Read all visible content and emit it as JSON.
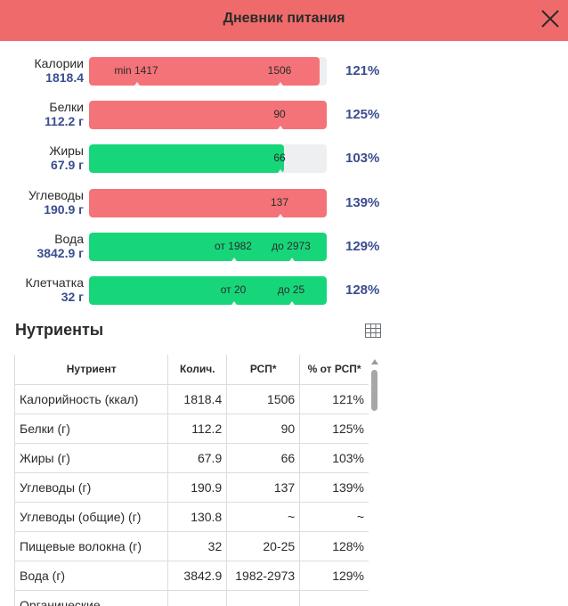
{
  "header": {
    "title": "Дневник питания"
  },
  "colors": {
    "header": "#ef6b6b",
    "over": "#f47378",
    "ok": "#17d67a",
    "track": "#eeeff1",
    "accent": "#3a4d8f"
  },
  "icons": {
    "close": "close-icon",
    "table_view": "table-icon"
  },
  "bars": [
    {
      "name": "Калории",
      "amount": "1818.4",
      "percent": "121%",
      "status": "over",
      "fill_fraction": 0.97,
      "markers": [
        {
          "label": "min 1417",
          "at_fraction": 0.2
        },
        {
          "label": "1506",
          "at_fraction": 0.8
        }
      ]
    },
    {
      "name": "Белки",
      "amount": "112.2 г",
      "percent": "125%",
      "status": "over",
      "fill_fraction": 1.0,
      "markers": [
        {
          "label": "90",
          "at_fraction": 0.8
        }
      ]
    },
    {
      "name": "Жиры",
      "amount": "67.9 г",
      "percent": "103%",
      "status": "ok",
      "fill_fraction": 0.82,
      "markers": [
        {
          "label": "66",
          "at_fraction": 0.8
        }
      ]
    },
    {
      "name": "Углеводы",
      "amount": "190.9 г",
      "percent": "139%",
      "status": "over",
      "fill_fraction": 1.0,
      "markers": [
        {
          "label": "137",
          "at_fraction": 0.8
        }
      ]
    },
    {
      "name": "Вода",
      "amount": "3842.9 г",
      "percent": "129%",
      "status": "ok",
      "fill_fraction": 1.0,
      "markers": [
        {
          "label": "от 1982",
          "at_fraction": 0.605
        },
        {
          "label": "до 2973",
          "at_fraction": 0.85
        }
      ]
    },
    {
      "name": "Клетчатка",
      "amount": "32 г",
      "percent": "128%",
      "status": "ok",
      "fill_fraction": 1.0,
      "markers": [
        {
          "label": "от 20",
          "at_fraction": 0.605
        },
        {
          "label": "до 25",
          "at_fraction": 0.85
        }
      ]
    }
  ],
  "nutrients": {
    "title": "Нутриенты",
    "columns": [
      "Нутриент",
      "Колич.",
      "РСП*",
      "% от РСП*"
    ],
    "rows": [
      [
        "Калорийность (ккал)",
        "1818.4",
        "1506",
        "121%"
      ],
      [
        "Белки (г)",
        "112.2",
        "90",
        "125%"
      ],
      [
        "Жиры (г)",
        "67.9",
        "66",
        "103%"
      ],
      [
        "Углеводы (г)",
        "190.9",
        "137",
        "139%"
      ],
      [
        "Углеводы (общие) (г)",
        "130.8",
        "~",
        "~"
      ],
      [
        "Пищевые волокна (г)",
        "32",
        "20-25",
        "128%"
      ],
      [
        "Вода (г)",
        "3842.9",
        "1982-2973",
        "129%"
      ],
      [
        "Органические",
        "",
        "",
        ""
      ]
    ]
  }
}
